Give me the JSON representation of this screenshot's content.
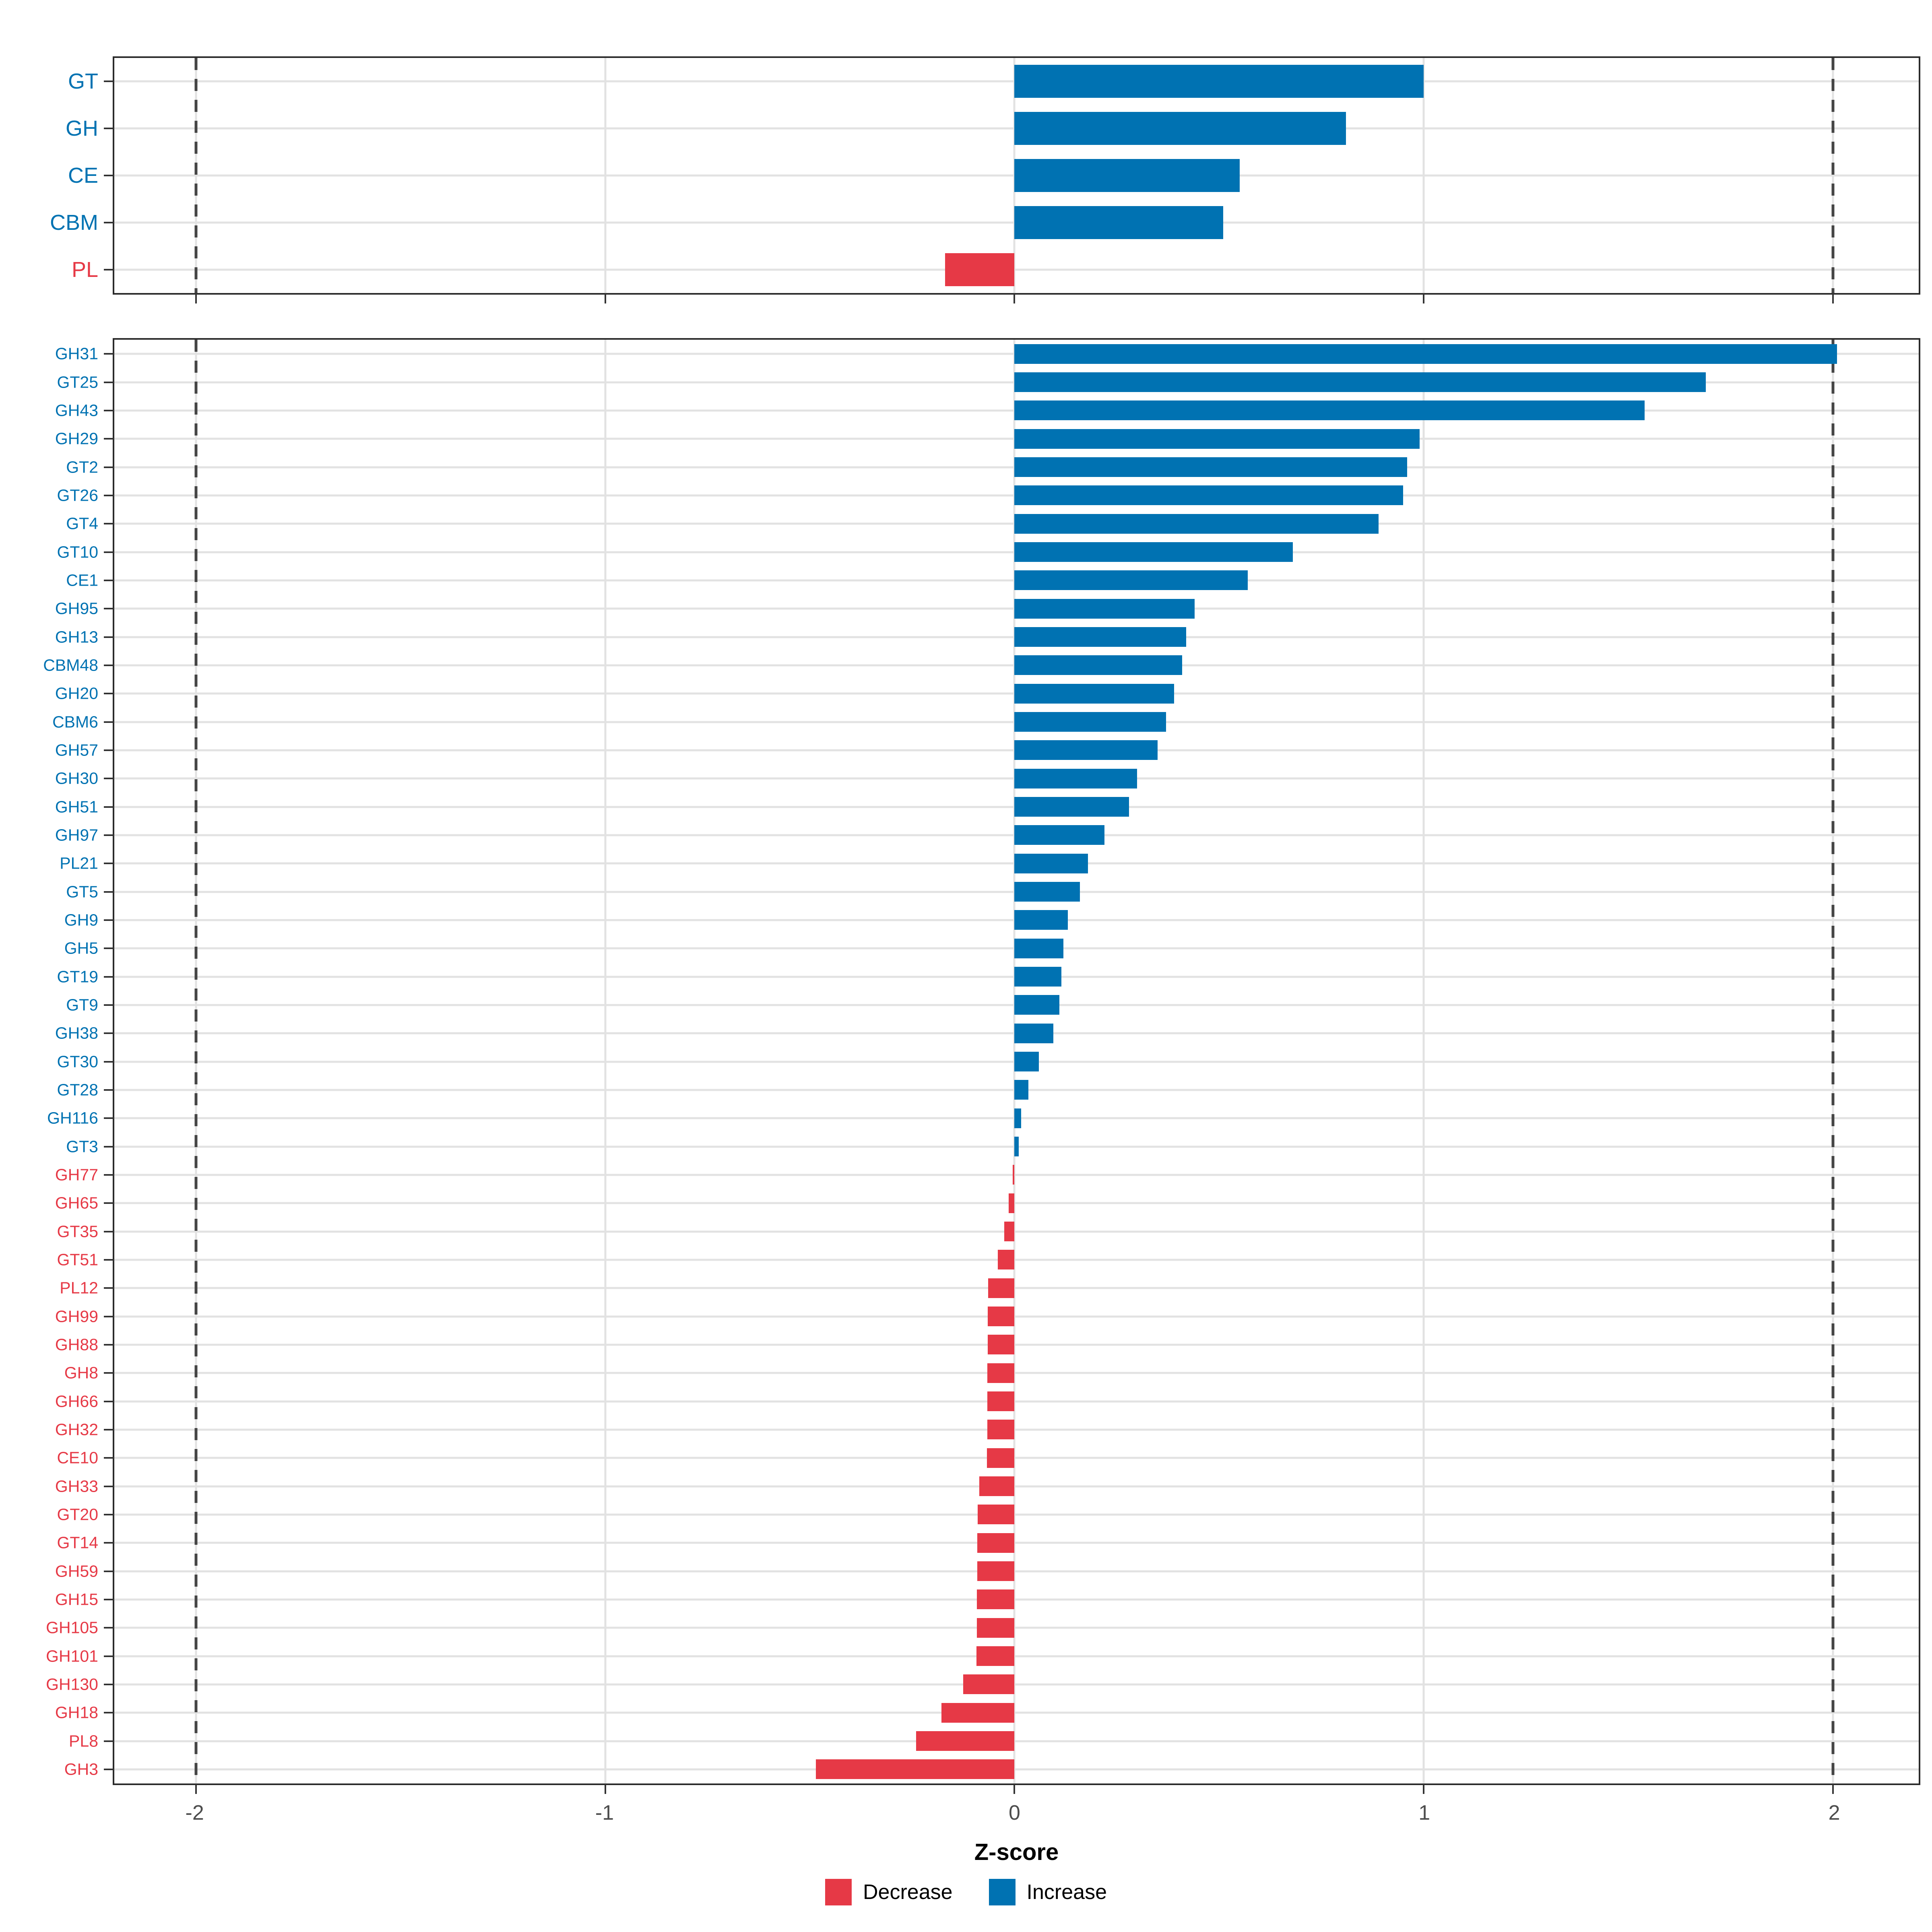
{
  "figure": {
    "xlabel": "Z-score",
    "x_ticks": [
      -2,
      -1,
      0,
      1,
      2
    ],
    "x_tick_labels": [
      "-2",
      "-1",
      "0",
      "1",
      "2"
    ],
    "xlim": [
      -2.2,
      2.21
    ],
    "dashed_reference_lines": [
      -2,
      2
    ],
    "legend": [
      {
        "label": "Decrease",
        "color": "#E63946"
      },
      {
        "label": "Increase",
        "color": "#0072B2"
      }
    ]
  },
  "colors": {
    "increase": "#0072B2",
    "decrease": "#E63946",
    "grid": "#e2e2e2",
    "dashed_line": "#454545",
    "axis_text": "#4d4d4d",
    "panel_border": "#2b2b2b"
  },
  "chart_data": [
    {
      "type": "bar",
      "orientation": "horizontal",
      "panel": "cazyme-classes",
      "categories": [
        "GT",
        "GH",
        "CE",
        "CBM",
        "PL"
      ],
      "values": [
        1.0,
        0.81,
        0.55,
        0.51,
        -0.17
      ],
      "xlabel": "Z-score",
      "xlim": [
        -2.2,
        2.21
      ],
      "grid": true,
      "legend_position": "bottom"
    },
    {
      "type": "bar",
      "orientation": "horizontal",
      "panel": "cazyme-families",
      "categories": [
        "GH31",
        "GT25",
        "GH43",
        "GH29",
        "GT2",
        "GT26",
        "GT4",
        "GT10",
        "CE1",
        "GH95",
        "GH13",
        "CBM48",
        "GH20",
        "CBM6",
        "GH57",
        "GH30",
        "GH51",
        "GH97",
        "PL21",
        "GT5",
        "GH9",
        "GH5",
        "GT19",
        "GT9",
        "GH38",
        "GT30",
        "GT28",
        "GH116",
        "GT3",
        "GH77",
        "GH65",
        "GT35",
        "GT51",
        "PL12",
        "GH99",
        "GH88",
        "GH8",
        "GH66",
        "GH32",
        "CE10",
        "GH33",
        "GT20",
        "GT14",
        "GH59",
        "GH15",
        "GH105",
        "GH101",
        "GH130",
        "GH18",
        "PL8",
        "GH3"
      ],
      "values": [
        2.01,
        1.69,
        1.54,
        0.99,
        0.96,
        0.95,
        0.89,
        0.68,
        0.57,
        0.44,
        0.42,
        0.41,
        0.39,
        0.37,
        0.35,
        0.3,
        0.28,
        0.22,
        0.18,
        0.16,
        0.13,
        0.12,
        0.115,
        0.11,
        0.095,
        0.06,
        0.034,
        0.016,
        0.01,
        -0.004,
        -0.014,
        -0.025,
        -0.041,
        -0.064,
        -0.065,
        -0.065,
        -0.066,
        -0.066,
        -0.066,
        -0.067,
        -0.086,
        -0.09,
        -0.091,
        -0.091,
        -0.092,
        -0.092,
        -0.093,
        -0.125,
        -0.178,
        -0.24,
        -0.485
      ],
      "xlabel": "Z-score",
      "xlim": [
        -2.2,
        2.21
      ],
      "grid": true,
      "legend_position": "bottom"
    }
  ]
}
